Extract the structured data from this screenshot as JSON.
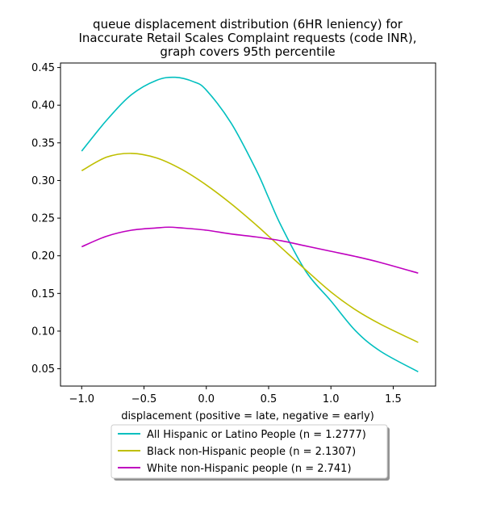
{
  "chart_data": {
    "type": "line",
    "title": [
      "queue displacement distribution (6HR leniency) for",
      "Inaccurate Retail Scales Complaint  requests (code INR),",
      "graph covers 95th percentile"
    ],
    "xlabel": "displacement (positive = late, negative = early)",
    "ylabel": "",
    "xlim": [
      -1.17,
      1.84
    ],
    "ylim": [
      0.027,
      0.456
    ],
    "xticks": [
      -1.0,
      -0.5,
      0.0,
      0.5,
      1.0,
      1.5
    ],
    "xtick_labels": [
      "−1.0",
      "−0.5",
      "0.0",
      "0.5",
      "1.0",
      "1.5"
    ],
    "yticks": [
      0.05,
      0.1,
      0.15,
      0.2,
      0.25,
      0.3,
      0.35,
      0.4,
      0.45
    ],
    "ytick_labels": [
      "0.05",
      "0.10",
      "0.15",
      "0.20",
      "0.25",
      "0.30",
      "0.35",
      "0.40",
      "0.45"
    ],
    "grid": false,
    "legend_position": "below plot",
    "series": [
      {
        "name": "All Hispanic or Latino People (n = 1.2777)",
        "color": "#00bfbf",
        "x": [
          -1.0,
          -0.8,
          -0.6,
          -0.4,
          -0.25,
          -0.1,
          0.0,
          0.2,
          0.4,
          0.5,
          0.6,
          0.8,
          1.0,
          1.2,
          1.4,
          1.7
        ],
        "y": [
          0.339,
          0.38,
          0.414,
          0.433,
          0.437,
          0.431,
          0.42,
          0.376,
          0.314,
          0.277,
          0.24,
          0.179,
          0.14,
          0.1,
          0.073,
          0.046
        ]
      },
      {
        "name": "Black non-Hispanic people (n = 2.1307)",
        "color": "#bfbf00",
        "x": [
          -1.0,
          -0.8,
          -0.6,
          -0.4,
          -0.2,
          0.0,
          0.2,
          0.4,
          0.5,
          0.6,
          0.8,
          1.0,
          1.2,
          1.4,
          1.7
        ],
        "y": [
          0.313,
          0.331,
          0.336,
          0.33,
          0.315,
          0.294,
          0.269,
          0.241,
          0.226,
          0.211,
          0.181,
          0.152,
          0.128,
          0.109,
          0.085
        ]
      },
      {
        "name": "White non-Hispanic people (n = 2.741)",
        "color": "#bf00bf",
        "x": [
          -1.0,
          -0.8,
          -0.6,
          -0.4,
          -0.3,
          -0.2,
          0.0,
          0.2,
          0.4,
          0.6,
          0.8,
          1.0,
          1.2,
          1.4,
          1.7
        ],
        "y": [
          0.212,
          0.226,
          0.234,
          0.237,
          0.238,
          0.237,
          0.234,
          0.229,
          0.225,
          0.22,
          0.213,
          0.206,
          0.199,
          0.191,
          0.177
        ]
      }
    ]
  }
}
